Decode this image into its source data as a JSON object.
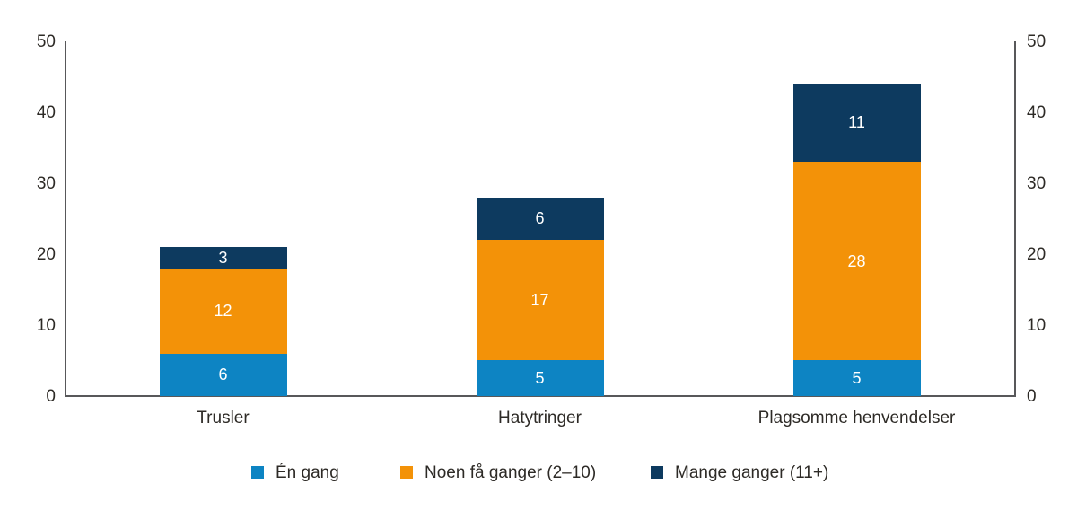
{
  "colors": {
    "series_blue": "#0d84c3",
    "series_orange": "#f39208",
    "series_navy": "#0d3a5f",
    "axis_line": "#58585a",
    "tick_text": "#2d2a26",
    "value_label_text": "#ffffff",
    "background": "#ffffff"
  },
  "chart_data": {
    "type": "bar",
    "stacked": true,
    "title": "",
    "xlabel": "",
    "ylabel": "",
    "categories": [
      "Trusler",
      "Hatytringer",
      "Plagsomme henvendelser"
    ],
    "series": [
      {
        "name": "Én gang",
        "color": "#0d84c3",
        "values": [
          6,
          5,
          5
        ]
      },
      {
        "name": "Noen få ganger (2–10)",
        "color": "#f39208",
        "values": [
          12,
          17,
          28
        ]
      },
      {
        "name": "Mange ganger (11+)",
        "color": "#0d3a5f",
        "values": [
          3,
          6,
          11
        ]
      }
    ],
    "ylim": [
      0,
      50
    ],
    "yticks": [
      0,
      10,
      20,
      30,
      40,
      50
    ],
    "y_axis_sides": [
      "left",
      "right"
    ],
    "grid": false,
    "value_labels": "inside, white, centered",
    "legend_position": "bottom"
  }
}
